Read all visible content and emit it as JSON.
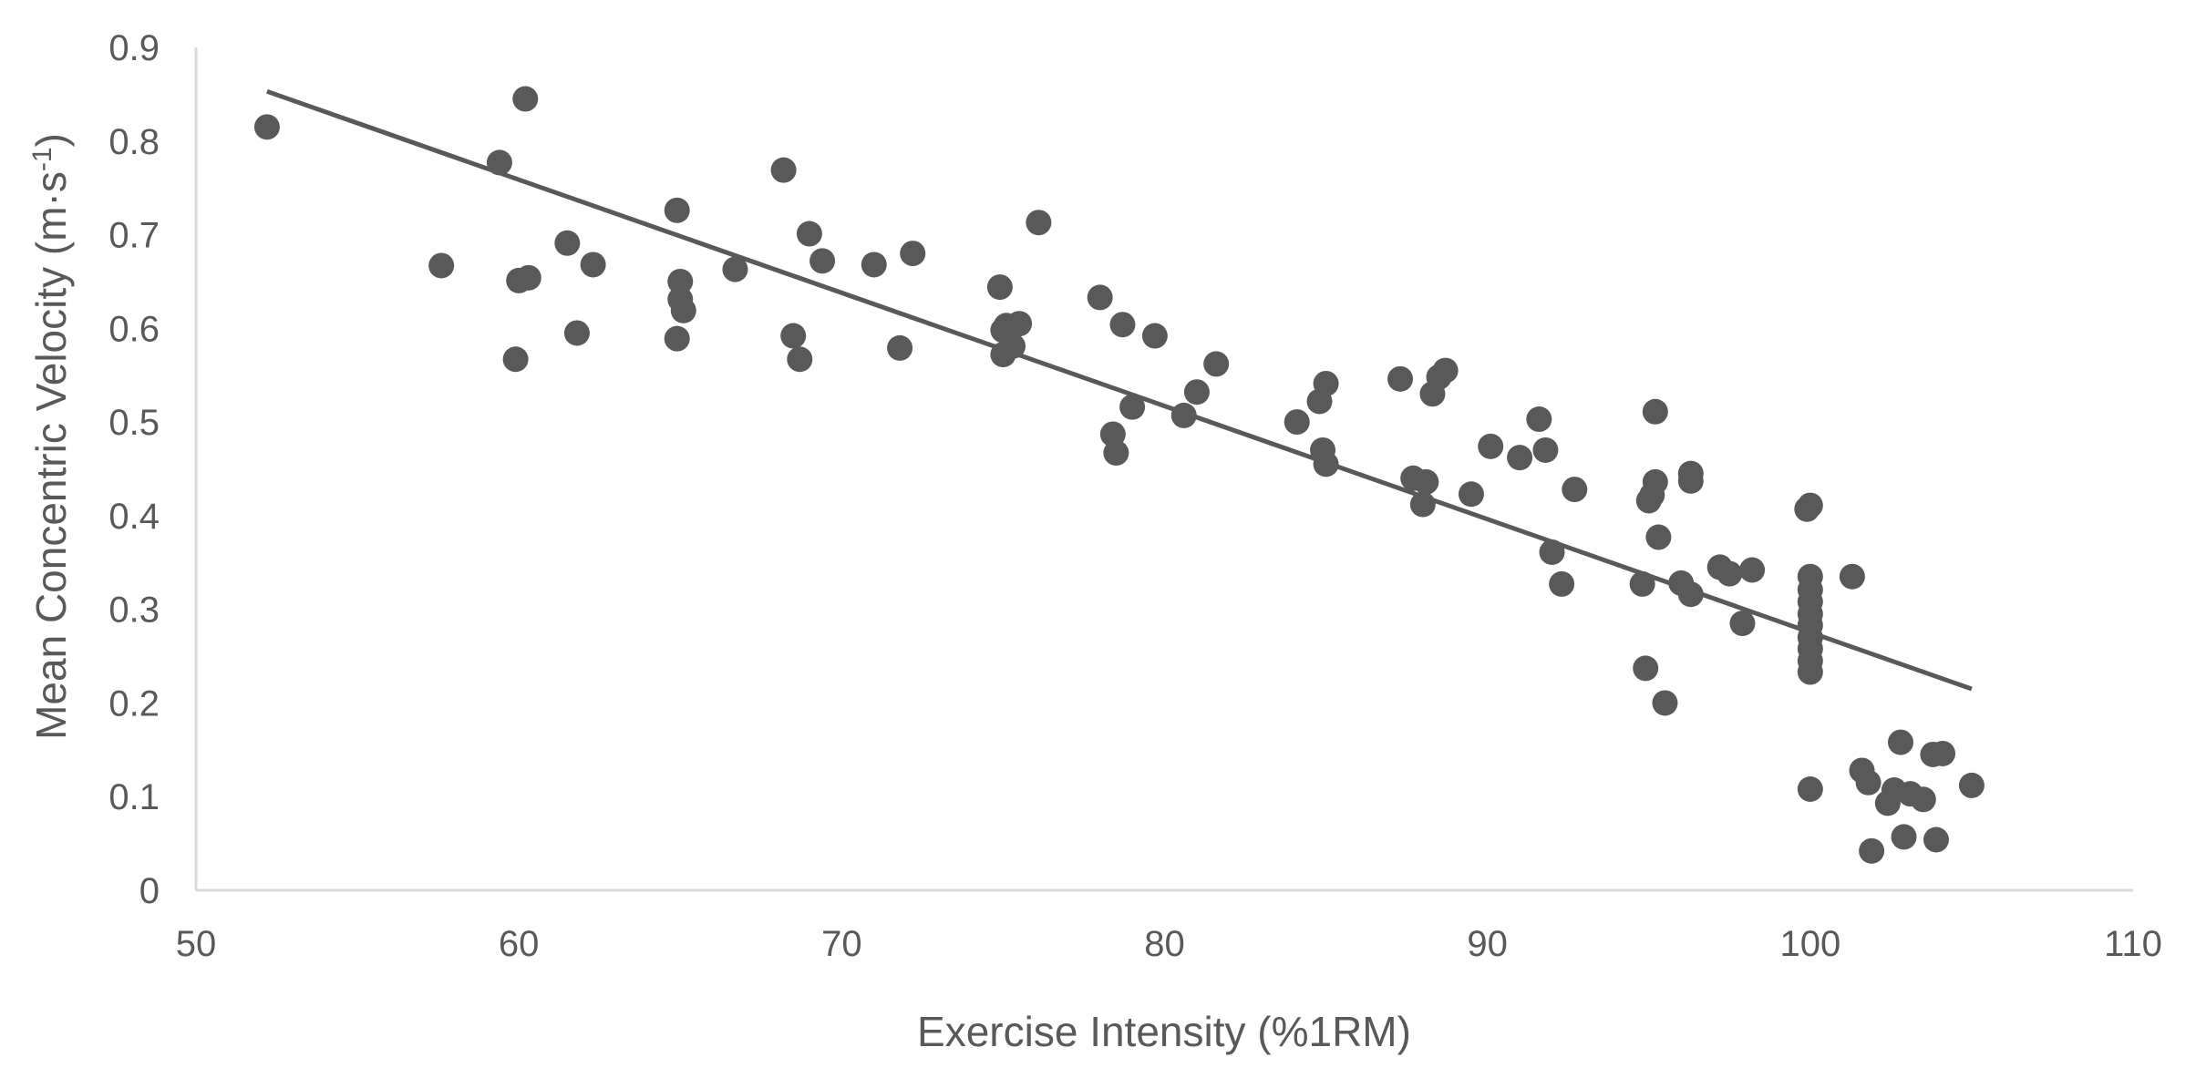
{
  "chart_data": {
    "type": "scatter",
    "title": "",
    "xlabel": "Exercise Intensity (%1RM)",
    "ylabel_main": "Mean Concentric Velocity (m·s",
    "ylabel_sup": "-1",
    "ylabel_close": ")",
    "xlim": [
      50,
      110
    ],
    "ylim": [
      0,
      0.9
    ],
    "x_ticks": [
      "50",
      "60",
      "70",
      "80",
      "90",
      "100",
      "110"
    ],
    "y_ticks": [
      "0",
      "0.1",
      "0.2",
      "0.3",
      "0.4",
      "0.5",
      "0.6",
      "0.7",
      "0.8",
      "0.9"
    ],
    "grid": false,
    "legend": "none",
    "colors": {
      "point": "#595959",
      "trendline": "#595959",
      "axis": "#d9d9d9",
      "text": "#595959"
    },
    "trendline": {
      "x": [
        52.2,
        105.0
      ],
      "y": [
        0.853,
        0.215
      ]
    },
    "points": [
      [
        52.2,
        0.815
      ],
      [
        57.6,
        0.667
      ],
      [
        59.4,
        0.777
      ],
      [
        60.0,
        0.651
      ],
      [
        60.3,
        0.654
      ],
      [
        59.9,
        0.567
      ],
      [
        60.2,
        0.845
      ],
      [
        61.5,
        0.691
      ],
      [
        61.8,
        0.595
      ],
      [
        62.3,
        0.668
      ],
      [
        64.9,
        0.726
      ],
      [
        64.9,
        0.589
      ],
      [
        65.0,
        0.65
      ],
      [
        65.0,
        0.631
      ],
      [
        65.1,
        0.619
      ],
      [
        66.7,
        0.663
      ],
      [
        68.2,
        0.769
      ],
      [
        68.5,
        0.592
      ],
      [
        68.7,
        0.567
      ],
      [
        69.0,
        0.701
      ],
      [
        69.4,
        0.672
      ],
      [
        71.0,
        0.668
      ],
      [
        71.8,
        0.579
      ],
      [
        72.2,
        0.68
      ],
      [
        74.9,
        0.644
      ],
      [
        75.0,
        0.572
      ],
      [
        75.0,
        0.598
      ],
      [
        75.1,
        0.603
      ],
      [
        75.3,
        0.581
      ],
      [
        75.5,
        0.605
      ],
      [
        76.1,
        0.713
      ],
      [
        78.0,
        0.633
      ],
      [
        78.4,
        0.487
      ],
      [
        78.5,
        0.467
      ],
      [
        78.7,
        0.604
      ],
      [
        79.0,
        0.516
      ],
      [
        79.7,
        0.592
      ],
      [
        80.6,
        0.507
      ],
      [
        81.0,
        0.532
      ],
      [
        81.6,
        0.562
      ],
      [
        84.1,
        0.5
      ],
      [
        84.8,
        0.522
      ],
      [
        84.9,
        0.47
      ],
      [
        85.0,
        0.541
      ],
      [
        85.0,
        0.455
      ],
      [
        87.3,
        0.546
      ],
      [
        87.7,
        0.44
      ],
      [
        88.0,
        0.412
      ],
      [
        88.1,
        0.436
      ],
      [
        88.3,
        0.53
      ],
      [
        88.5,
        0.548
      ],
      [
        88.7,
        0.555
      ],
      [
        89.5,
        0.423
      ],
      [
        90.1,
        0.474
      ],
      [
        91.0,
        0.462
      ],
      [
        91.6,
        0.503
      ],
      [
        91.8,
        0.47
      ],
      [
        92.0,
        0.361
      ],
      [
        92.3,
        0.327
      ],
      [
        92.7,
        0.428
      ],
      [
        94.8,
        0.327
      ],
      [
        94.9,
        0.237
      ],
      [
        95.0,
        0.416
      ],
      [
        95.1,
        0.422
      ],
      [
        95.2,
        0.436
      ],
      [
        95.2,
        0.511
      ],
      [
        95.3,
        0.377
      ],
      [
        95.5,
        0.2
      ],
      [
        96.0,
        0.328
      ],
      [
        96.3,
        0.316
      ],
      [
        96.3,
        0.437
      ],
      [
        96.3,
        0.445
      ],
      [
        97.2,
        0.345
      ],
      [
        97.5,
        0.338
      ],
      [
        97.9,
        0.285
      ],
      [
        98.2,
        0.342
      ],
      [
        99.9,
        0.407
      ],
      [
        100.0,
        0.411
      ],
      [
        100.0,
        0.335
      ],
      [
        100.0,
        0.321
      ],
      [
        100.0,
        0.308
      ],
      [
        100.0,
        0.295
      ],
      [
        100.0,
        0.283
      ],
      [
        100.0,
        0.27
      ],
      [
        100.0,
        0.258
      ],
      [
        100.0,
        0.245
      ],
      [
        100.0,
        0.233
      ],
      [
        100.0,
        0.108
      ],
      [
        101.3,
        0.335
      ],
      [
        101.6,
        0.128
      ],
      [
        101.8,
        0.115
      ],
      [
        101.9,
        0.042
      ],
      [
        102.4,
        0.093
      ],
      [
        102.6,
        0.107
      ],
      [
        102.8,
        0.158
      ],
      [
        102.9,
        0.057
      ],
      [
        103.1,
        0.103
      ],
      [
        103.5,
        0.097
      ],
      [
        103.8,
        0.145
      ],
      [
        103.9,
        0.054
      ],
      [
        104.1,
        0.146
      ],
      [
        105.0,
        0.112
      ]
    ]
  }
}
